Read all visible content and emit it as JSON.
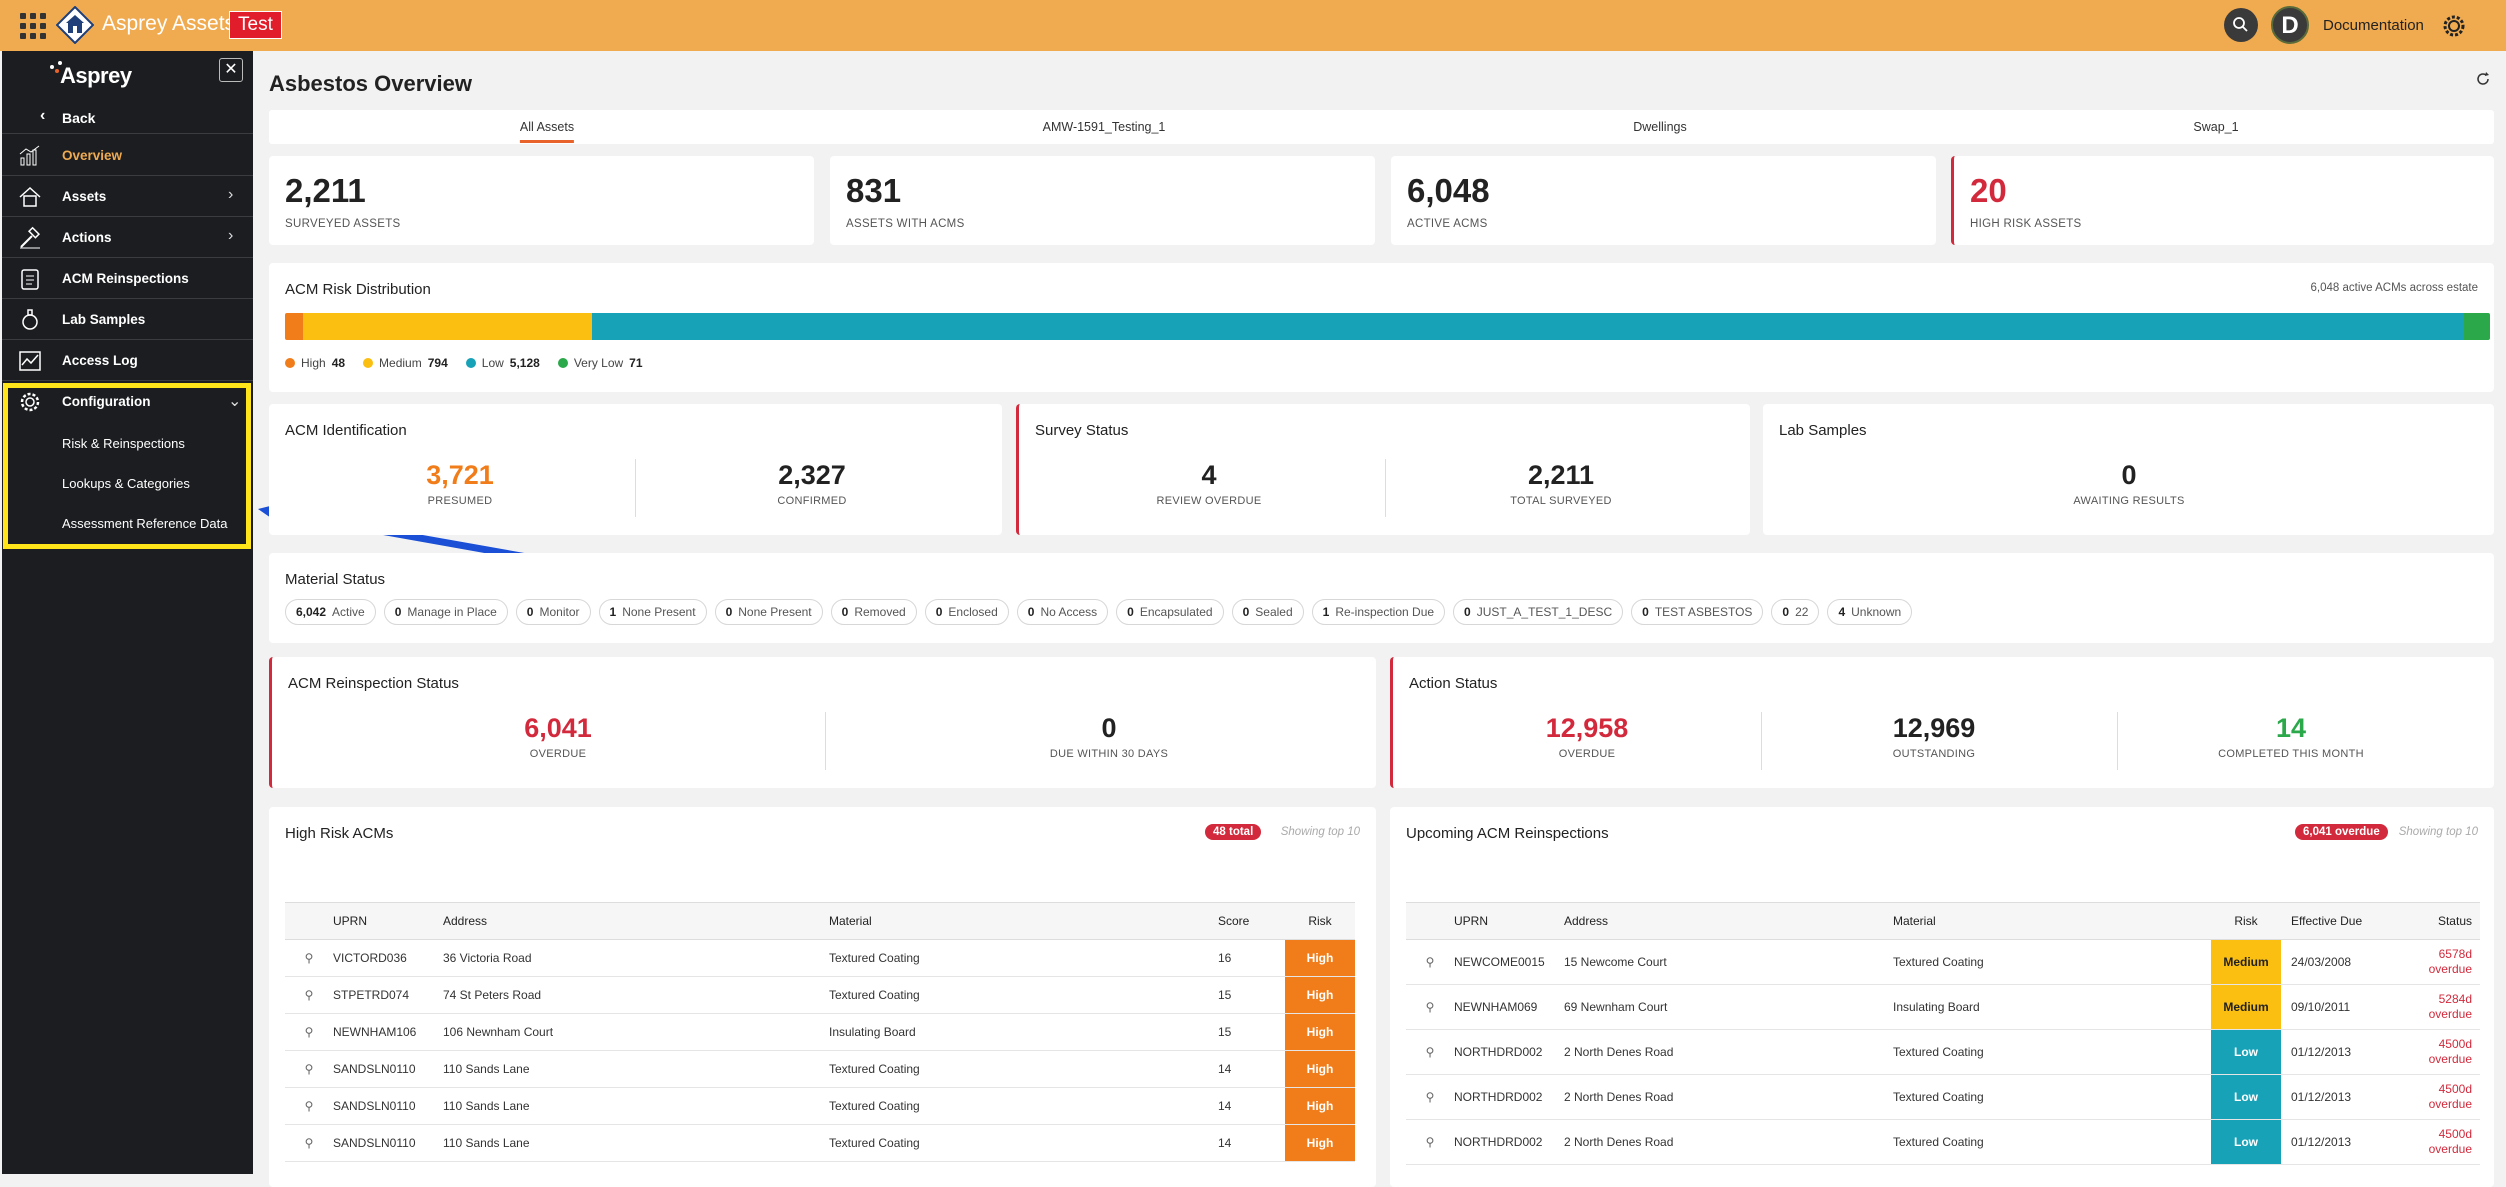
{
  "topbar": {
    "app_title": "Asprey Assets",
    "env_badge": "Test",
    "avatar_initial": "D",
    "doc_link": "Documentation",
    "icons": [
      "apps-grid-icon",
      "home-logo-icon",
      "search-icon",
      "settings-gear-icon"
    ]
  },
  "sidebar": {
    "logo": "Asprey",
    "back": "Back",
    "items": [
      {
        "label": "Overview",
        "icon": "chart-icon",
        "active": true
      },
      {
        "label": "Assets",
        "icon": "home-icon"
      },
      {
        "label": "Actions",
        "icon": "hammer-icon"
      },
      {
        "label": "ACM Reinspections",
        "icon": "clipboard-icon"
      },
      {
        "label": "Lab Samples",
        "icon": "flask-icon"
      },
      {
        "label": "Access Log",
        "icon": "activity-icon"
      },
      {
        "label": "Configuration",
        "icon": "gear-icon"
      }
    ],
    "config_sub": [
      "Risk & Reinspections",
      "Lookups & Categories",
      "Assessment Reference Data"
    ]
  },
  "page": {
    "title": "Asbestos Overview"
  },
  "tabs": [
    "All Assets",
    "AMW-1591_Testing_1",
    "Dwellings",
    "Swap_1"
  ],
  "stats": [
    {
      "value": "2,211",
      "label": "SURVEYED ASSETS"
    },
    {
      "value": "831",
      "label": "ASSETS WITH ACMS"
    },
    {
      "value": "6,048",
      "label": "ACTIVE ACMS"
    },
    {
      "value": "20",
      "label": "HIGH RISK ASSETS"
    }
  ],
  "risk_dist": {
    "title": "ACM Risk Distribution",
    "meta": "6,048 active ACMs across estate",
    "segments": [
      {
        "name": "High",
        "count": 48,
        "display": "48",
        "color": "#f07d1a"
      },
      {
        "name": "Medium",
        "count": 794,
        "display": "794",
        "color": "#fbbf12"
      },
      {
        "name": "Low",
        "count": 5128,
        "display": "5,128",
        "color": "#17a2b8"
      },
      {
        "name": "Very Low",
        "count": 71,
        "display": "71",
        "color": "#2aa84a"
      }
    ]
  },
  "acm_identification": {
    "title": "ACM Identification",
    "presumed": "3,721",
    "presumed_label": "PRESUMED",
    "confirmed": "2,327",
    "confirmed_label": "CONFIRMED"
  },
  "survey_status": {
    "title": "Survey Status",
    "review_overdue": "4",
    "review_label": "REVIEW OVERDUE",
    "total": "2,211",
    "total_label": "TOTAL SURVEYED"
  },
  "lab_samples": {
    "title": "Lab Samples",
    "awaiting": "0",
    "awaiting_label": "AWAITING RESULTS"
  },
  "material_status": {
    "title": "Material Status",
    "chips": [
      {
        "n": "6,042",
        "l": "Active"
      },
      {
        "n": "0",
        "l": "Manage in Place"
      },
      {
        "n": "0",
        "l": "Monitor"
      },
      {
        "n": "1",
        "l": "None Present"
      },
      {
        "n": "0",
        "l": "None Present"
      },
      {
        "n": "0",
        "l": "Removed"
      },
      {
        "n": "0",
        "l": "Enclosed"
      },
      {
        "n": "0",
        "l": "No Access"
      },
      {
        "n": "0",
        "l": "Encapsulated"
      },
      {
        "n": "0",
        "l": "Sealed"
      },
      {
        "n": "1",
        "l": "Re-inspection Due"
      },
      {
        "n": "0",
        "l": "JUST_A_TEST_1_DESC"
      },
      {
        "n": "0",
        "l": "TEST ASBESTOS"
      },
      {
        "n": "0",
        "l": "22"
      },
      {
        "n": "4",
        "l": "Unknown"
      }
    ]
  },
  "acm_reinspection": {
    "title": "ACM Reinspection Status",
    "overdue": "6,041",
    "overdue_label": "OVERDUE",
    "due30": "0",
    "due30_label": "DUE WITHIN 30 DAYS"
  },
  "action_status": {
    "title": "Action Status",
    "overdue": "12,958",
    "overdue_label": "OVERDUE",
    "outstanding": "12,969",
    "outstanding_label": "OUTSTANDING",
    "completed": "14",
    "completed_label": "COMPLETED THIS MONTH"
  },
  "high_risk": {
    "title": "High Risk ACMs",
    "pill": "48 total",
    "showing": "Showing top 10",
    "headers": [
      "UPRN",
      "Address",
      "Material",
      "Score",
      "Risk"
    ],
    "rows": [
      [
        "VICTORD036",
        "36 Victoria Road",
        "Textured Coating",
        "16",
        "High"
      ],
      [
        "STPETRD074",
        "74 St Peters Road",
        "Textured Coating",
        "15",
        "High"
      ],
      [
        "NEWNHAM106",
        "106 Newnham Court",
        "Insulating Board",
        "15",
        "High"
      ],
      [
        "SANDSLN0110",
        "110 Sands Lane",
        "Textured Coating",
        "14",
        "High"
      ],
      [
        "SANDSLN0110",
        "110 Sands Lane",
        "Textured Coating",
        "14",
        "High"
      ],
      [
        "SANDSLN0110",
        "110 Sands Lane",
        "Textured Coating",
        "14",
        "High"
      ]
    ]
  },
  "upcoming": {
    "title": "Upcoming ACM Reinspections",
    "pill": "6,041 overdue",
    "showing": "Showing top 10",
    "headers": [
      "UPRN",
      "Address",
      "Material",
      "Risk",
      "Effective Due",
      "Status"
    ],
    "rows": [
      [
        "NEWCOME0015",
        "15 Newcome Court",
        "Textured Coating",
        "Medium",
        "24/03/2008",
        "6578d",
        "overdue"
      ],
      [
        "NEWNHAM069",
        "69 Newnham Court",
        "Insulating Board",
        "Medium",
        "09/10/2011",
        "5284d",
        "overdue"
      ],
      [
        "NORTHDRD002",
        "2 North Denes Road",
        "Textured Coating",
        "Low",
        "01/12/2013",
        "4500d",
        "overdue"
      ],
      [
        "NORTHDRD002",
        "2 North Denes Road",
        "Textured Coating",
        "Low",
        "01/12/2013",
        "4500d",
        "overdue"
      ],
      [
        "NORTHDRD002",
        "2 North Denes Road",
        "Textured Coating",
        "Low",
        "01/12/2013",
        "4500d",
        "overdue"
      ]
    ]
  },
  "colors": {
    "brand": "#f0ab51",
    "accent": "#e8632b",
    "danger": "#d22a3c",
    "high": "#f07d1a",
    "medium": "#fbbf12",
    "low": "#17a2b8"
  }
}
